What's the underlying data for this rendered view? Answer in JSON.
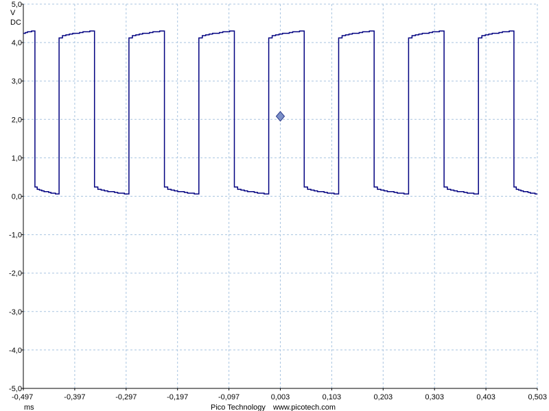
{
  "chart_data": {
    "type": "line",
    "y_unit": "V",
    "coupling": "DC",
    "x_unit": "ms",
    "ylim": [
      -5.0,
      5.0
    ],
    "xlim": [
      -0.497,
      0.503
    ],
    "y_ticks": [
      "5,0",
      "4,0",
      "3,0",
      "2,0",
      "1,0",
      "0,0",
      "-1,0",
      "-2,0",
      "-3,0",
      "-4,0",
      "-5,0"
    ],
    "y_tick_values": [
      5,
      4,
      3,
      2,
      1,
      0,
      -1,
      -2,
      -3,
      -4,
      -5
    ],
    "x_ticks": [
      "-0,497",
      "-0,397",
      "-0,297",
      "-0,197",
      "-0,097",
      "0,003",
      "0,103",
      "0,203",
      "0,303",
      "0,403",
      "0,503"
    ],
    "x_tick_values": [
      -0.497,
      -0.397,
      -0.297,
      -0.197,
      -0.097,
      0.003,
      0.103,
      0.203,
      0.303,
      0.403,
      0.503
    ],
    "grid": true,
    "trigger_marker": {
      "x": 0.003,
      "y": 2.08
    },
    "series": [
      {
        "color": "#000080",
        "waveform": "square",
        "period_ms": 0.136,
        "high_level_v": [
          4.12,
          4.3
        ],
        "low_level_v": [
          0.24,
          0.06
        ],
        "rising_edges_ms": [
          -0.43,
          -0.294,
          -0.158,
          -0.022,
          0.114,
          0.25,
          0.386
        ],
        "falling_edges_ms": [
          -0.477,
          -0.361,
          -0.225,
          -0.089,
          0.047,
          0.183,
          0.319,
          0.455
        ]
      }
    ]
  },
  "colors": {
    "trace": "#000080",
    "grid": "#a8c4e0",
    "axis": "#000000",
    "marker_fill": "#7b8fc8",
    "marker_stroke": "#2a3a8a"
  },
  "footer": {
    "brand": "Pico Technology",
    "url": "www.picotech.com"
  }
}
